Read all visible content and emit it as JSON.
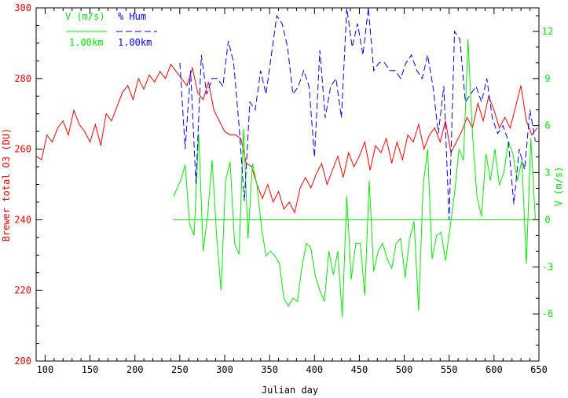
{
  "chart_data": {
    "type": "line",
    "title": "",
    "xlabel": "Julian day",
    "ylabel_left": "Brewer total O3 (DU)",
    "ylabel_right": "V (m/s)",
    "xlim": [
      90,
      650
    ],
    "ylim_left": [
      200,
      300
    ],
    "ylim_right": [
      -9,
      13.5
    ],
    "x_ticks": [
      100,
      150,
      200,
      250,
      300,
      350,
      400,
      450,
      500,
      550,
      600,
      650
    ],
    "y_left_ticks": [
      200,
      220,
      240,
      260,
      280,
      300
    ],
    "y_right_ticks": [
      -6,
      -3,
      0,
      3,
      6,
      9,
      12
    ],
    "colors": {
      "o3": "#ff0000",
      "wind": "#00ee00",
      "hum": "#0000ff",
      "frame": "#000000",
      "zero_line": "#00ee00"
    },
    "legend": {
      "placement": "top-left",
      "entries": [
        {
          "title": "V (m/s)",
          "sub": "1.00km",
          "color": "#00ee00",
          "style": "solid"
        },
        {
          "title": "% Hum",
          "sub": "1.00km",
          "color": "#0000ff",
          "style": "dashed"
        }
      ]
    },
    "series": [
      {
        "name": "Brewer total O3",
        "axis": "left",
        "style": "solid",
        "x": [
          90,
          96,
          102,
          108,
          114,
          120,
          126,
          132,
          138,
          144,
          150,
          156,
          162,
          168,
          174,
          180,
          186,
          192,
          198,
          204,
          210,
          216,
          222,
          228,
          234,
          240,
          246,
          252,
          258,
          264,
          270,
          276,
          282,
          288,
          294,
          300,
          306,
          312,
          318,
          324,
          330,
          336,
          342,
          348,
          354,
          360,
          366,
          372,
          378,
          384,
          390,
          396,
          402,
          408,
          414,
          420,
          426,
          432,
          438,
          444,
          450,
          456,
          462,
          468,
          474,
          480,
          486,
          492,
          498,
          504,
          510,
          516,
          522,
          528,
          534,
          540,
          546,
          552,
          558,
          564,
          570,
          576,
          582,
          588,
          594,
          600,
          606,
          612,
          618,
          624,
          630,
          636,
          642,
          648
        ],
        "y": [
          258,
          257,
          264,
          262,
          266,
          268,
          264,
          271,
          267,
          265,
          262,
          267,
          261,
          270,
          268,
          272,
          276,
          278,
          274,
          280,
          277,
          281,
          279,
          282,
          280,
          284,
          282,
          280,
          278,
          283,
          276,
          274,
          279,
          271,
          268,
          265,
          264,
          264,
          263,
          256,
          255,
          250,
          246,
          250,
          245,
          248,
          243,
          245,
          242,
          249,
          252,
          249,
          253,
          256,
          250,
          254,
          258,
          252,
          259,
          255,
          258,
          262,
          254,
          261,
          259,
          263,
          256,
          262,
          257,
          264,
          262,
          267,
          260,
          264,
          266,
          262,
          268,
          259,
          262,
          265,
          269,
          266,
          273,
          268,
          275,
          271,
          266,
          269,
          266,
          272,
          278,
          268,
          264,
          266
        ]
      },
      {
        "name": "V (m/s)",
        "axis": "right",
        "style": "solid",
        "x": [
          243,
          247,
          251,
          256,
          261,
          266,
          271,
          276,
          281,
          286,
          291,
          296,
          301,
          306,
          311,
          316,
          321,
          326,
          331,
          336,
          341,
          346,
          351,
          356,
          361,
          366,
          371,
          376,
          381,
          386,
          391,
          396,
          401,
          406,
          411,
          416,
          421,
          426,
          431,
          436,
          441,
          446,
          451,
          456,
          461,
          466,
          471,
          476,
          481,
          486,
          491,
          496,
          501,
          506,
          511,
          516,
          521,
          526,
          531,
          536,
          541,
          546,
          551,
          556,
          561,
          566,
          571,
          576,
          581,
          586,
          591,
          596,
          601,
          606,
          611,
          616,
          621,
          626,
          631,
          636,
          641,
          646
        ],
        "y": [
          1.5,
          2.0,
          2.5,
          3.5,
          -0.3,
          -1.0,
          5.5,
          -2.0,
          0.3,
          3.8,
          -1.0,
          -4.5,
          2.5,
          3.7,
          -1.5,
          -2.2,
          5.8,
          -1.2,
          3.6,
          2.2,
          -0.5,
          -2.3,
          -2.0,
          -2.3,
          -2.8,
          -5.0,
          -5.5,
          -5.0,
          -5.2,
          -3.0,
          -1.5,
          -1.8,
          -3.6,
          -4.5,
          -5.2,
          -2.0,
          -3.5,
          -2.0,
          -6.2,
          1.5,
          -3.8,
          -1.5,
          -1.5,
          -4.8,
          2.5,
          -3.3,
          -2.0,
          -1.5,
          -2.5,
          -3.1,
          -1.5,
          -1.2,
          -3.7,
          -1.2,
          -0.1,
          -5.8,
          2.2,
          4.5,
          -2.5,
          -1.0,
          -0.8,
          -2.6,
          -0.5,
          1.7,
          4.5,
          3.8,
          11.5,
          5.5,
          1.5,
          0.2,
          4.2,
          2.5,
          4.5,
          2.2,
          3.0,
          5.0,
          4.2,
          2.5,
          3.8,
          -2.8,
          5.2,
          0.0
        ]
      },
      {
        "name": "% Hum",
        "axis": "right",
        "style": "dashed",
        "x": [
          250,
          256,
          262,
          268,
          274,
          280,
          286,
          292,
          298,
          304,
          310,
          316,
          322,
          328,
          334,
          340,
          346,
          352,
          358,
          364,
          370,
          376,
          382,
          388,
          394,
          400,
          406,
          412,
          418,
          424,
          430,
          436,
          442,
          448,
          454,
          460,
          466,
          472,
          478,
          484,
          490,
          496,
          502,
          508,
          514,
          520,
          526,
          532,
          538,
          544,
          550,
          556,
          562,
          568,
          574,
          580,
          586,
          592,
          598,
          604,
          610,
          616,
          622,
          628,
          634,
          640,
          646
        ],
        "y": [
          10.0,
          4.5,
          9.5,
          2.3,
          10.5,
          8.0,
          9.0,
          9.0,
          8.5,
          11.4,
          10.0,
          6.0,
          1.2,
          7.5,
          7.0,
          9.5,
          8.0,
          10.5,
          13.0,
          12.5,
          11.0,
          8.0,
          8.5,
          9.5,
          8.5,
          4.0,
          10.8,
          6.5,
          8.5,
          9.0,
          6.5,
          13.5,
          11.0,
          12.5,
          10.5,
          13.5,
          9.5,
          10.0,
          10.0,
          9.5,
          9.5,
          9.0,
          10.0,
          10.5,
          9.5,
          9.0,
          10.5,
          8.5,
          5.5,
          8.5,
          0.0,
          12.0,
          11.5,
          7.5,
          8.0,
          8.5,
          7.5,
          9.0,
          6.5,
          5.5,
          6.0,
          5.0,
          1.0,
          4.5,
          3.2,
          7.0,
          5.0
        ]
      }
    ]
  }
}
